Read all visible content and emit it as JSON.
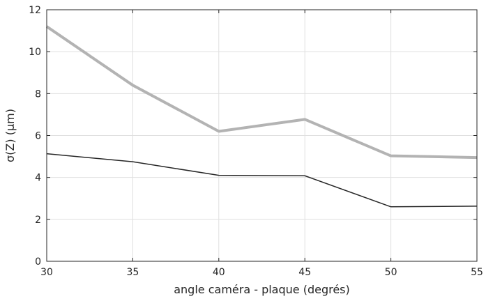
{
  "chart_data": {
    "type": "line",
    "xlabel": "angle caméra - plaque (degrés)",
    "ylabel": "σ(Z) (μm)",
    "xlim": [
      30,
      55
    ],
    "ylim": [
      0,
      12
    ],
    "xticks": [
      30,
      35,
      40,
      45,
      50,
      55
    ],
    "yticks": [
      0,
      2,
      4,
      6,
      8,
      10,
      12
    ],
    "grid": true,
    "x": [
      30,
      35,
      40,
      45,
      50,
      55
    ],
    "series": [
      {
        "values": [
          11.2,
          8.4,
          6.2,
          6.77,
          5.03,
          4.95
        ],
        "color": "#b3b3b3",
        "width": 4
      },
      {
        "values": [
          5.13,
          4.75,
          4.1,
          4.08,
          2.6,
          2.63
        ],
        "color": "#262626",
        "width": 1.5
      }
    ]
  }
}
